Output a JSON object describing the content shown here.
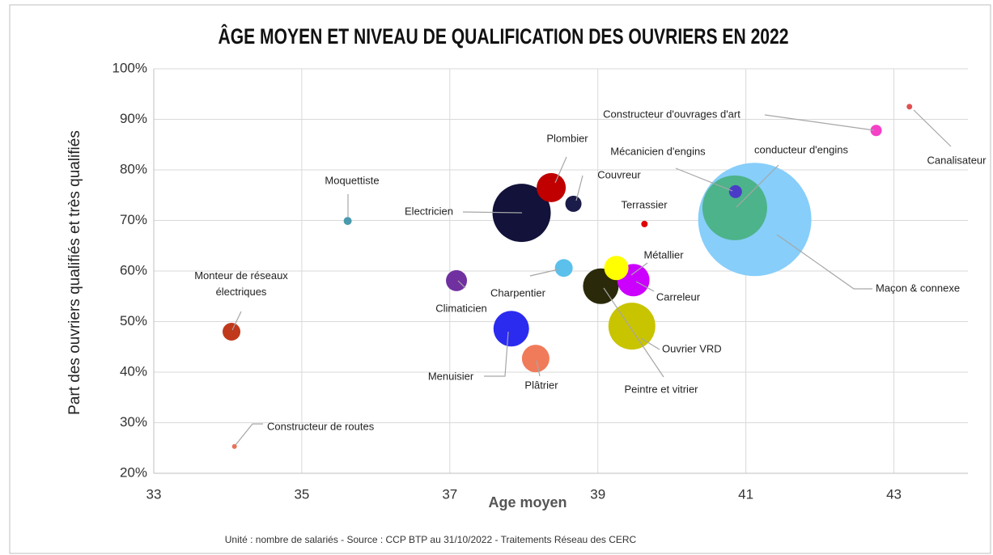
{
  "chart_data": {
    "type": "bubble",
    "title": "ÂGE MOYEN ET NIVEAU DE QUALIFICATION DES OUVRIERS EN 2022",
    "x_label": "Age moyen",
    "y_label": "Part des ouvriers qualifiés et très qualifiés",
    "footnote": "Unité : nombre de salariés - Source : CCP BTP au 31/10/2022 - Traitements Réseau des CERC",
    "xlim": [
      33,
      44
    ],
    "xticks": [
      33,
      35,
      37,
      39,
      41,
      43
    ],
    "ylim": [
      20,
      100
    ],
    "yticks": [
      {
        "value": 20,
        "label": "20%"
      },
      {
        "value": 30,
        "label": "30%"
      },
      {
        "value": 40,
        "label": "40%"
      },
      {
        "value": 50,
        "label": "50%"
      },
      {
        "value": 60,
        "label": "60%"
      },
      {
        "value": 70,
        "label": "70%"
      },
      {
        "value": 80,
        "label": "80%"
      },
      {
        "value": 90,
        "label": "90%"
      },
      {
        "value": 100,
        "label": "100%"
      }
    ],
    "grid": true,
    "points": [
      {
        "label": "Maçon & connexe",
        "x": 41.12,
        "y": 70.2,
        "size": 4900,
        "color": "#87cefa"
      },
      {
        "label": "conducteur d'engins",
        "x": 40.85,
        "y": 72.5,
        "size": 1600,
        "color": "#4db38a"
      },
      {
        "label": "Electricien",
        "x": 37.97,
        "y": 71.5,
        "size": 1296,
        "color": "#12123a"
      },
      {
        "label": "Ouvrier VRD",
        "x": 39.46,
        "y": 49.1,
        "size": 841,
        "color": "#c9c400"
      },
      {
        "label": "Menuisier",
        "x": 37.83,
        "y": 48.6,
        "size": 484,
        "color": "#2b2bf0"
      },
      {
        "label": "Peintre et vitrier",
        "x": 39.04,
        "y": 57,
        "size": 484,
        "color": "#2a2a0a"
      },
      {
        "label": "Carreleur",
        "x": 39.48,
        "y": 58.2,
        "size": 400,
        "color": "#cc00ff"
      },
      {
        "label": "Plombier",
        "x": 38.37,
        "y": 76.5,
        "size": 324,
        "color": "#c00000"
      },
      {
        "label": "Plâtrier",
        "x": 38.16,
        "y": 42.7,
        "size": 289,
        "color": "#f07b5a"
      },
      {
        "label": "Métallier",
        "x": 39.25,
        "y": 60.6,
        "size": 225,
        "color": "#ffff00"
      },
      {
        "label": "Climaticien",
        "x": 37.09,
        "y": 58.1,
        "size": 169,
        "color": "#7030a0"
      },
      {
        "label": "Monteur de réseaux électriques",
        "x": 34.05,
        "y": 48,
        "size": 121,
        "color": "#c0391b"
      },
      {
        "label": "Charpentier",
        "x": 38.54,
        "y": 60.6,
        "size": 121,
        "color": "#5bc0eb"
      },
      {
        "label": "Couvreur",
        "x": 38.67,
        "y": 73.3,
        "size": 100,
        "color": "#1c1c4a"
      },
      {
        "label": "Mécanicien d'engins",
        "x": 40.86,
        "y": 75.7,
        "size": 64,
        "color": "#4b3cc8"
      },
      {
        "label": "Constructeur d'ouvrages d'art",
        "x": 42.76,
        "y": 87.8,
        "size": 49,
        "color": "#f540c8"
      },
      {
        "label": "Moquettiste",
        "x": 35.62,
        "y": 69.9,
        "size": 25,
        "color": "#4a9aae"
      },
      {
        "label": "Terrassier",
        "x": 39.63,
        "y": 69.3,
        "size": 16,
        "color": "#e00000"
      },
      {
        "label": "Constructeur de routes",
        "x": 34.09,
        "y": 25.3,
        "size": 9,
        "color": "#e8735a"
      },
      {
        "label": "Canalisateur",
        "x": 43.21,
        "y": 92.5,
        "size": 12,
        "color": "#e05050"
      }
    ]
  }
}
